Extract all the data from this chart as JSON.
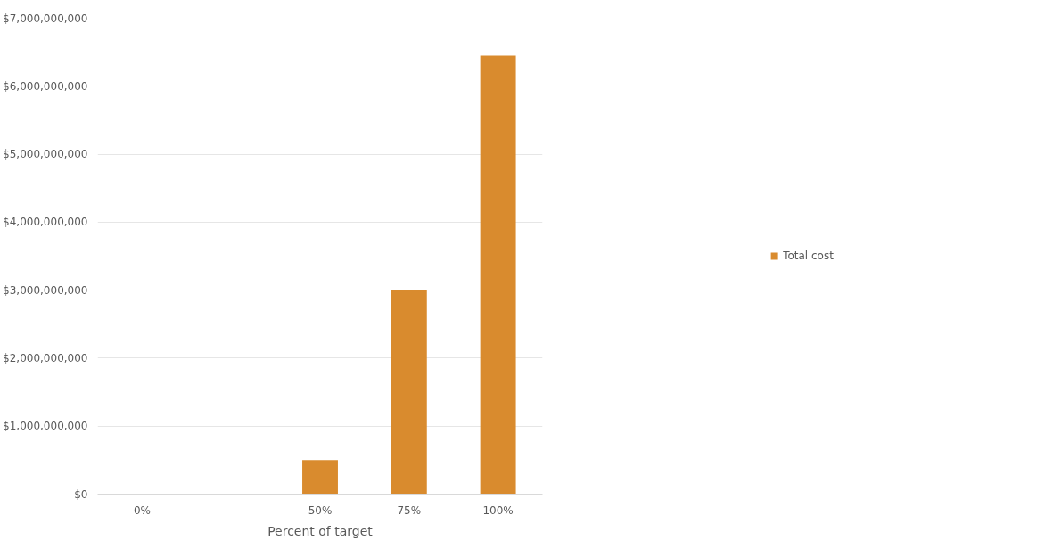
{
  "chart_data": {
    "type": "bar",
    "xlabel": "Percent of target",
    "categories": [
      "0%",
      null,
      "50%",
      "75%",
      "100%"
    ],
    "series": [
      {
        "name": "Total cost",
        "color": "#d98b2e",
        "values": [
          0,
          null,
          500000000,
          3000000000,
          6450000000
        ]
      }
    ],
    "ylim": [
      0,
      7000000000
    ],
    "yticks": [
      {
        "value": 0,
        "label": "$0"
      },
      {
        "value": 1000000000,
        "label": "$1,000,000,000"
      },
      {
        "value": 2000000000,
        "label": "$2,000,000,000"
      },
      {
        "value": 3000000000,
        "label": "$3,000,000,000"
      },
      {
        "value": 4000000000,
        "label": "$4,000,000,000"
      },
      {
        "value": 5000000000,
        "label": "$5,000,000,000"
      },
      {
        "value": 6000000000,
        "label": "$6,000,000,000"
      },
      {
        "value": 7000000000,
        "label": "$7,000,000,000"
      }
    ],
    "grid": "y",
    "legend": "right"
  }
}
